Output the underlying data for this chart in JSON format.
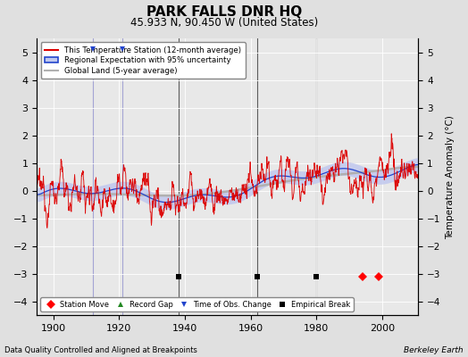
{
  "title": "PARK FALLS DNR HQ",
  "subtitle": "45.933 N, 90.450 W (United States)",
  "xlabel_note": "Data Quality Controlled and Aligned at Breakpoints",
  "credit": "Berkeley Earth",
  "xlim": [
    1895,
    2011
  ],
  "ylim": [
    -4.5,
    5.5
  ],
  "yticks": [
    -4,
    -3,
    -2,
    -1,
    0,
    1,
    2,
    3,
    4,
    5
  ],
  "xticks": [
    1900,
    1920,
    1940,
    1960,
    1980,
    2000
  ],
  "ylabel": "Temperature Anomaly (°C)",
  "bg_color": "#e0e0e0",
  "plot_bg_color": "#e8e8e8",
  "station_line_color": "#dd0000",
  "regional_line_color": "#2244cc",
  "regional_fill_color": "#c0c8ee",
  "global_line_color": "#b0b0b0",
  "station_moves": [
    1994,
    1999
  ],
  "record_gaps": [],
  "obs_changes_blue": [
    1912,
    1921
  ],
  "empirical_breaks": [
    1938,
    1962,
    1980
  ],
  "vline_color_break": "#444444",
  "vline_color_obs": "#8888cc",
  "marker_y": -3.1,
  "seed": 12345
}
